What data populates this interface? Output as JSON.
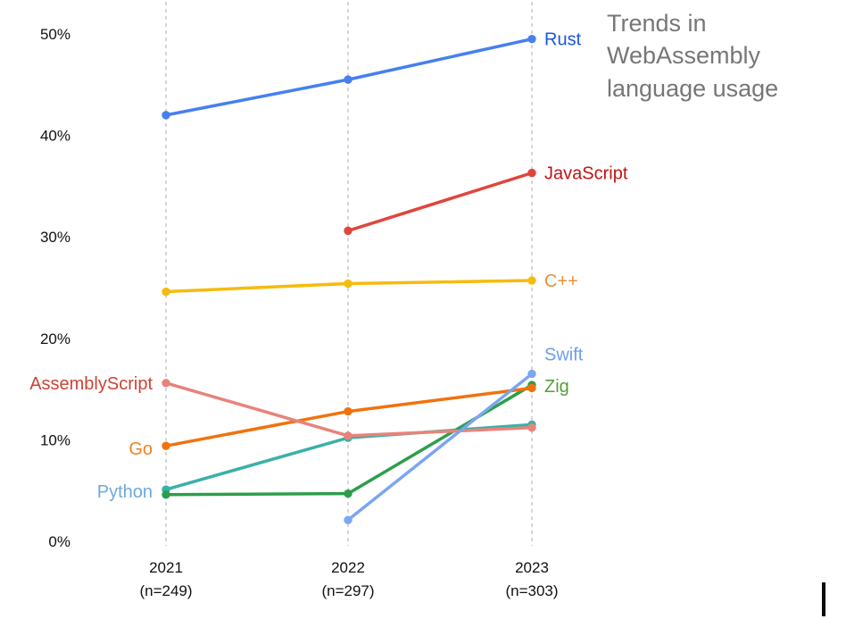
{
  "title": "Trends in WebAssembly language usage",
  "chart_data": {
    "type": "line",
    "title": "Trends in WebAssembly language usage",
    "xlabel": "",
    "ylabel": "",
    "ylim": [
      0,
      52
    ],
    "grid": "vertical-dashed-only",
    "legend_position": "direct-line-labels",
    "categories": [
      "2021",
      "2022",
      "2023"
    ],
    "sample_sizes": [
      "(n=249)",
      "(n=297)",
      "(n=303)"
    ],
    "y_ticks": [
      "0%",
      "10%",
      "20%",
      "30%",
      "40%",
      "50%"
    ],
    "gridline_color": "#bfbfbf",
    "series": [
      {
        "name": "Python",
        "values": [
          5.1,
          10.2,
          11.5
        ],
        "line_color": "#3bb0a8",
        "label_color": "#6fa8dc",
        "label_side": "left",
        "label_dy": 2
      },
      {
        "name": "Zig",
        "values": [
          4.6,
          4.7,
          15.4
        ],
        "line_color": "#2c9e4b",
        "label_color": "#559e3a",
        "label_side": "right",
        "label_dy": 1
      },
      {
        "name": "Go",
        "values": [
          9.4,
          12.8,
          15.1
        ],
        "line_color": "#f1720d",
        "label_color": "#ef8226",
        "label_side": "left",
        "label_dy": 3
      },
      {
        "name": "AssemblyScript",
        "values": [
          15.6,
          10.4,
          11.2
        ],
        "line_color": "#e8837b",
        "label_color": "#cb4335",
        "label_side": "left",
        "label_dy": 0
      },
      {
        "name": "Swift",
        "values": [
          null,
          2.1,
          16.5
        ],
        "line_color": "#7aa6f2",
        "label_color": "#6d9eeb",
        "label_side": "right",
        "label_dy": -22
      },
      {
        "name": "C++",
        "values": [
          24.6,
          25.4,
          25.7
        ],
        "line_color": "#f6bb0e",
        "label_color": "#e8913c",
        "label_side": "right",
        "label_dy": 0
      },
      {
        "name": "JavaScript",
        "values": [
          null,
          30.6,
          36.3
        ],
        "line_color": "#e0453c",
        "label_color": "#c11414",
        "label_side": "right",
        "label_dy": 0
      },
      {
        "name": "Rust",
        "values": [
          42.0,
          45.5,
          49.5
        ],
        "line_color": "#4580ee",
        "label_color": "#1a56db",
        "label_side": "right",
        "label_dy": 0
      }
    ]
  }
}
